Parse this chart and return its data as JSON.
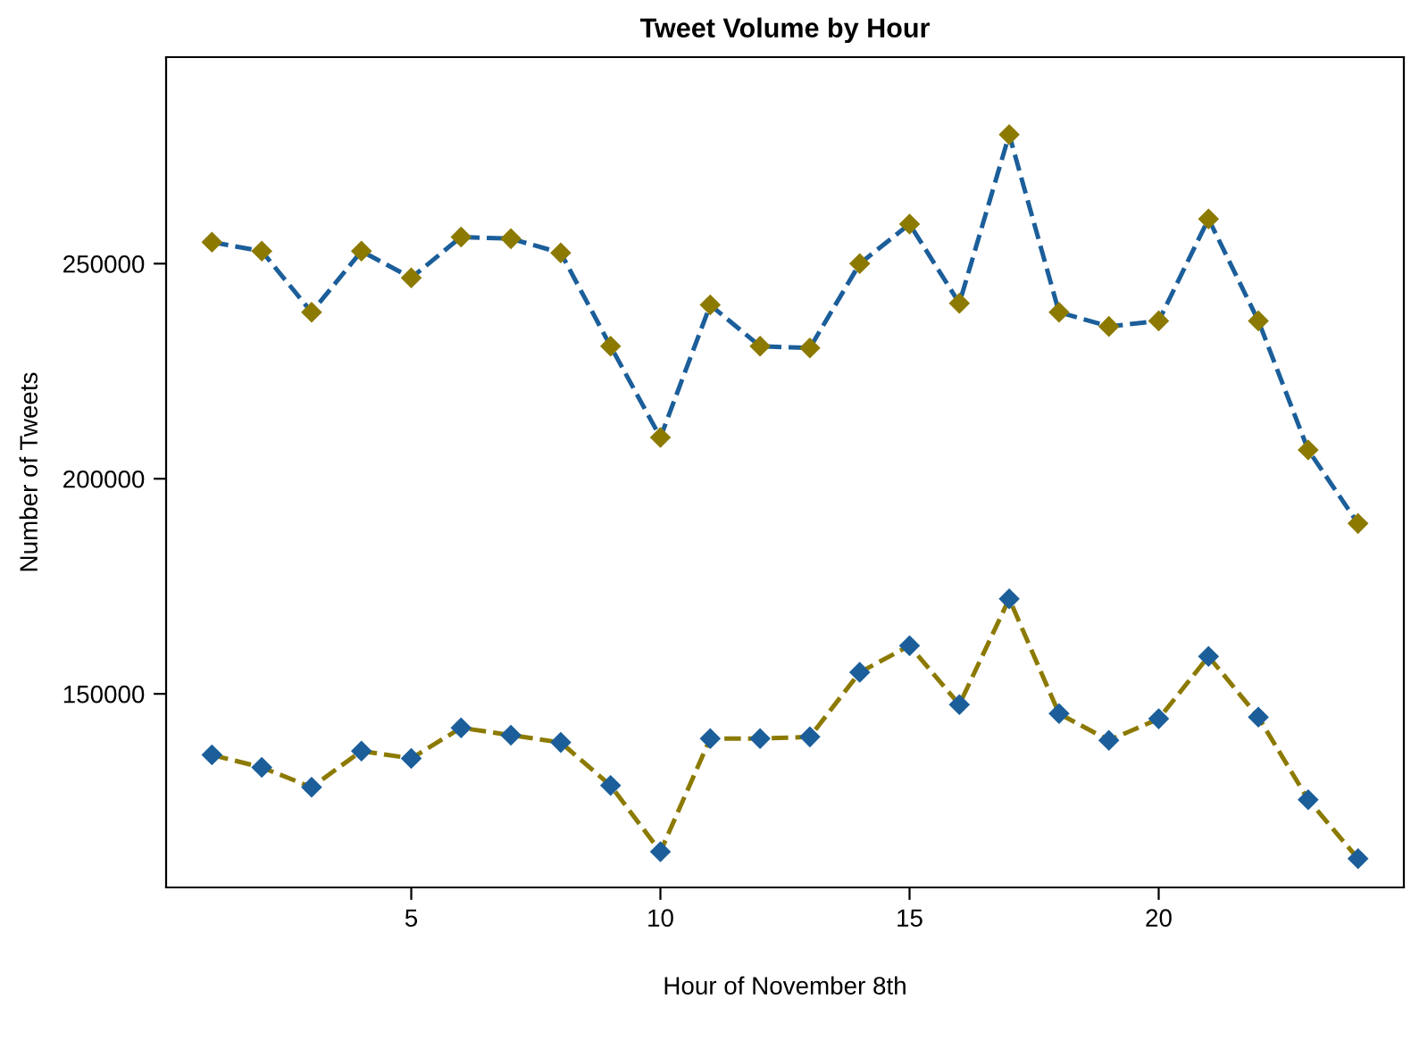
{
  "chart_data": {
    "type": "line",
    "title": "Tweet Volume by Hour",
    "xlabel": "Hour of November 8th",
    "ylabel": "Number of Tweets",
    "x": [
      1,
      2,
      3,
      4,
      5,
      6,
      7,
      8,
      9,
      10,
      11,
      12,
      13,
      14,
      15,
      16,
      17,
      18,
      19,
      20,
      21,
      22,
      23,
      24
    ],
    "series": [
      {
        "color": "#1b5e9a",
        "colors": [
          "#8c7a00",
          "#8c7a00",
          "#8c7a00",
          "#8c7a00",
          "#8c7a00",
          "#8c7a00",
          "#8c7a00",
          "#8c7a00",
          "#8c7a00",
          "#8c7a00",
          "#8c7a00",
          "#8c7a00",
          "#8c7a00",
          "#8c7a00",
          "#8c7a00",
          "#8c7a00",
          "#8c7a00",
          "#8c7a00",
          "#8c7a00",
          "#8c7a00",
          "#8c7a00",
          "#8c7a00",
          "#8c7a00",
          "#8c7a00"
        ],
        "values": [
          255000,
          252900,
          238700,
          252900,
          246700,
          256200,
          255800,
          252500,
          230800,
          209600,
          240400,
          230800,
          230400,
          250000,
          259200,
          240800,
          280000,
          238700,
          235400,
          236700,
          260400,
          236700,
          206700,
          189600
        ]
      },
      {
        "color": "#8c7a00",
        "colors": [
          "#1b5e9a",
          "#1b5e9a",
          "#1b5e9a",
          "#1b5e9a",
          "#1b5e9a",
          "#1b5e9a",
          "#1b5e9a",
          "#1b5e9a",
          "#1b5e9a",
          "#1b5e9a",
          "#1b5e9a",
          "#1b5e9a",
          "#1b5e9a",
          "#1b5e9a",
          "#1b5e9a",
          "#1b5e9a",
          "#1b5e9a",
          "#1b5e9a",
          "#1b5e9a",
          "#1b5e9a",
          "#1b5e9a",
          "#1b5e9a",
          "#1b5e9a",
          "#1b5e9a"
        ],
        "values": [
          135800,
          132900,
          128300,
          136700,
          135000,
          142100,
          140400,
          138700,
          128700,
          113300,
          139600,
          139600,
          140000,
          155000,
          161200,
          147500,
          172100,
          145400,
          139200,
          144200,
          158700,
          144600,
          125400,
          111700
        ]
      }
    ],
    "xlim": [
      0.08,
      24.92
    ],
    "xticks": [
      5,
      10,
      15,
      20
    ],
    "ylim": [
      105000,
      298000
    ],
    "yticks": [
      150000,
      200000,
      250000
    ],
    "marker": "diamond",
    "line_style": "dashed",
    "grid": false,
    "legend": false
  }
}
